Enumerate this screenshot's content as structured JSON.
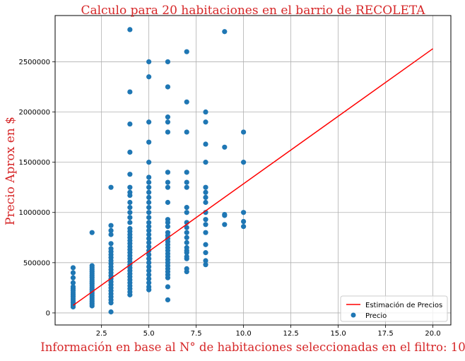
{
  "chart_data": {
    "type": "scatter",
    "title": "Calculo para 20 habitaciones en el barrio de RECOLETA",
    "xlabel": "Información en base al N° de habitaciones seleccionadas en el filtro: 10",
    "ylabel": "Precio Aprox en $",
    "xlim": [
      0.05,
      20.95
    ],
    "ylim": [
      -120000,
      2960000
    ],
    "x_ticks": [
      2.5,
      5.0,
      7.5,
      10.0,
      12.5,
      15.0,
      17.5,
      20.0
    ],
    "x_tick_labels": [
      "2.5",
      "5.0",
      "7.5",
      "10.0",
      "12.5",
      "15.0",
      "17.5",
      "20.0"
    ],
    "y_ticks": [
      0,
      500000,
      1000000,
      1500000,
      2000000,
      2500000
    ],
    "y_tick_labels": [
      "0",
      "500000",
      "1000000",
      "1500000",
      "2000000",
      "2500000"
    ],
    "grid": true,
    "legend_position": "lower-right",
    "colors": {
      "title": "#d62728",
      "axis_labels": "#d62728",
      "scatter": "#1f77b4",
      "line": "#ff0000",
      "grid": "#b0b0b0"
    },
    "series": [
      {
        "name": "Precio",
        "kind": "scatter",
        "points": [
          [
            1,
            60000
          ],
          [
            1,
            80000
          ],
          [
            1,
            100000
          ],
          [
            1,
            120000
          ],
          [
            1,
            140000
          ],
          [
            1,
            160000
          ],
          [
            1,
            180000
          ],
          [
            1,
            200000
          ],
          [
            1,
            220000
          ],
          [
            1,
            240000
          ],
          [
            1,
            260000
          ],
          [
            1,
            300000
          ],
          [
            1,
            350000
          ],
          [
            1,
            400000
          ],
          [
            1,
            450000
          ],
          [
            2,
            70000
          ],
          [
            2,
            90000
          ],
          [
            2,
            110000
          ],
          [
            2,
            130000
          ],
          [
            2,
            150000
          ],
          [
            2,
            170000
          ],
          [
            2,
            190000
          ],
          [
            2,
            210000
          ],
          [
            2,
            230000
          ],
          [
            2,
            250000
          ],
          [
            2,
            270000
          ],
          [
            2,
            290000
          ],
          [
            2,
            310000
          ],
          [
            2,
            330000
          ],
          [
            2,
            350000
          ],
          [
            2,
            370000
          ],
          [
            2,
            390000
          ],
          [
            2,
            410000
          ],
          [
            2,
            430000
          ],
          [
            2,
            450000
          ],
          [
            2,
            470000
          ],
          [
            2,
            800000
          ],
          [
            3,
            10000
          ],
          [
            3,
            100000
          ],
          [
            3,
            130000
          ],
          [
            3,
            160000
          ],
          [
            3,
            190000
          ],
          [
            3,
            220000
          ],
          [
            3,
            250000
          ],
          [
            3,
            280000
          ],
          [
            3,
            310000
          ],
          [
            3,
            340000
          ],
          [
            3,
            370000
          ],
          [
            3,
            400000
          ],
          [
            3,
            430000
          ],
          [
            3,
            460000
          ],
          [
            3,
            490000
          ],
          [
            3,
            520000
          ],
          [
            3,
            550000
          ],
          [
            3,
            580000
          ],
          [
            3,
            610000
          ],
          [
            3,
            640000
          ],
          [
            3,
            690000
          ],
          [
            3,
            780000
          ],
          [
            3,
            820000
          ],
          [
            3,
            870000
          ],
          [
            3,
            1250000
          ],
          [
            4,
            180000
          ],
          [
            4,
            210000
          ],
          [
            4,
            240000
          ],
          [
            4,
            270000
          ],
          [
            4,
            300000
          ],
          [
            4,
            330000
          ],
          [
            4,
            360000
          ],
          [
            4,
            390000
          ],
          [
            4,
            420000
          ],
          [
            4,
            450000
          ],
          [
            4,
            480000
          ],
          [
            4,
            510000
          ],
          [
            4,
            540000
          ],
          [
            4,
            570000
          ],
          [
            4,
            600000
          ],
          [
            4,
            630000
          ],
          [
            4,
            660000
          ],
          [
            4,
            690000
          ],
          [
            4,
            720000
          ],
          [
            4,
            750000
          ],
          [
            4,
            780000
          ],
          [
            4,
            810000
          ],
          [
            4,
            840000
          ],
          [
            4,
            900000
          ],
          [
            4,
            950000
          ],
          [
            4,
            1000000
          ],
          [
            4,
            1050000
          ],
          [
            4,
            1100000
          ],
          [
            4,
            1170000
          ],
          [
            4,
            1200000
          ],
          [
            4,
            1250000
          ],
          [
            4,
            1380000
          ],
          [
            4,
            1600000
          ],
          [
            4,
            1880000
          ],
          [
            4,
            2200000
          ],
          [
            4,
            2820000
          ],
          [
            5,
            230000
          ],
          [
            5,
            260000
          ],
          [
            5,
            300000
          ],
          [
            5,
            340000
          ],
          [
            5,
            380000
          ],
          [
            5,
            420000
          ],
          [
            5,
            460000
          ],
          [
            5,
            500000
          ],
          [
            5,
            540000
          ],
          [
            5,
            580000
          ],
          [
            5,
            620000
          ],
          [
            5,
            660000
          ],
          [
            5,
            700000
          ],
          [
            5,
            740000
          ],
          [
            5,
            780000
          ],
          [
            5,
            820000
          ],
          [
            5,
            860000
          ],
          [
            5,
            900000
          ],
          [
            5,
            950000
          ],
          [
            5,
            1000000
          ],
          [
            5,
            1050000
          ],
          [
            5,
            1100000
          ],
          [
            5,
            1150000
          ],
          [
            5,
            1200000
          ],
          [
            5,
            1250000
          ],
          [
            5,
            1300000
          ],
          [
            5,
            1350000
          ],
          [
            5,
            1500000
          ],
          [
            5,
            1700000
          ],
          [
            5,
            1900000
          ],
          [
            5,
            2350000
          ],
          [
            5,
            2500000
          ],
          [
            6,
            130000
          ],
          [
            6,
            260000
          ],
          [
            6,
            350000
          ],
          [
            6,
            380000
          ],
          [
            6,
            410000
          ],
          [
            6,
            440000
          ],
          [
            6,
            470000
          ],
          [
            6,
            500000
          ],
          [
            6,
            530000
          ],
          [
            6,
            560000
          ],
          [
            6,
            590000
          ],
          [
            6,
            620000
          ],
          [
            6,
            650000
          ],
          [
            6,
            680000
          ],
          [
            6,
            710000
          ],
          [
            6,
            740000
          ],
          [
            6,
            770000
          ],
          [
            6,
            800000
          ],
          [
            6,
            860000
          ],
          [
            6,
            900000
          ],
          [
            6,
            930000
          ],
          [
            6,
            1100000
          ],
          [
            6,
            1250000
          ],
          [
            6,
            1300000
          ],
          [
            6,
            1400000
          ],
          [
            6,
            1800000
          ],
          [
            6,
            1900000
          ],
          [
            6,
            1950000
          ],
          [
            6,
            2250000
          ],
          [
            6,
            2500000
          ],
          [
            7,
            410000
          ],
          [
            7,
            440000
          ],
          [
            7,
            540000
          ],
          [
            7,
            560000
          ],
          [
            7,
            600000
          ],
          [
            7,
            620000
          ],
          [
            7,
            650000
          ],
          [
            7,
            700000
          ],
          [
            7,
            750000
          ],
          [
            7,
            800000
          ],
          [
            7,
            850000
          ],
          [
            7,
            900000
          ],
          [
            7,
            1000000
          ],
          [
            7,
            1050000
          ],
          [
            7,
            1250000
          ],
          [
            7,
            1300000
          ],
          [
            7,
            1400000
          ],
          [
            7,
            1800000
          ],
          [
            7,
            2100000
          ],
          [
            7,
            2600000
          ],
          [
            8,
            480000
          ],
          [
            8,
            520000
          ],
          [
            8,
            600000
          ],
          [
            8,
            680000
          ],
          [
            8,
            800000
          ],
          [
            8,
            880000
          ],
          [
            8,
            930000
          ],
          [
            8,
            1000000
          ],
          [
            8,
            1100000
          ],
          [
            8,
            1150000
          ],
          [
            8,
            1200000
          ],
          [
            8,
            1250000
          ],
          [
            8,
            1500000
          ],
          [
            8,
            1680000
          ],
          [
            8,
            1900000
          ],
          [
            8,
            2000000
          ],
          [
            9,
            880000
          ],
          [
            9,
            970000
          ],
          [
            9,
            980000
          ],
          [
            9,
            1650000
          ],
          [
            9,
            2800000
          ],
          [
            10,
            860000
          ],
          [
            10,
            910000
          ],
          [
            10,
            1000000
          ],
          [
            10,
            1500000
          ],
          [
            10,
            1800000
          ]
        ]
      },
      {
        "name": "Estimación de Precios",
        "kind": "line",
        "x": [
          1,
          20
        ],
        "y": [
          75000,
          2630000
        ]
      }
    ]
  }
}
